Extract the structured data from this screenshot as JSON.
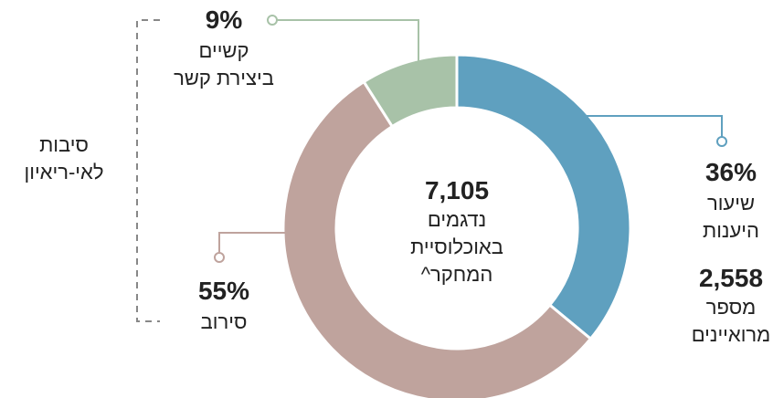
{
  "chart_data": {
    "type": "donut",
    "categories": [
      "שיעור היענות",
      "סירוב",
      "קשיים ביצירת קשר"
    ],
    "values": [
      36,
      55,
      9
    ],
    "value_labels": [
      "36%",
      "55%",
      "9%"
    ],
    "colors": [
      "#5fa0bf",
      "#bfa39d",
      "#a8c2a8"
    ],
    "center_number": "7,105",
    "center_text": "נדגמים באוכלוסיית המחקר^",
    "side_number": "2,558",
    "side_text": "מספר מרואיינים",
    "bracket_text": "סיבות לאי-ריאיון"
  }
}
